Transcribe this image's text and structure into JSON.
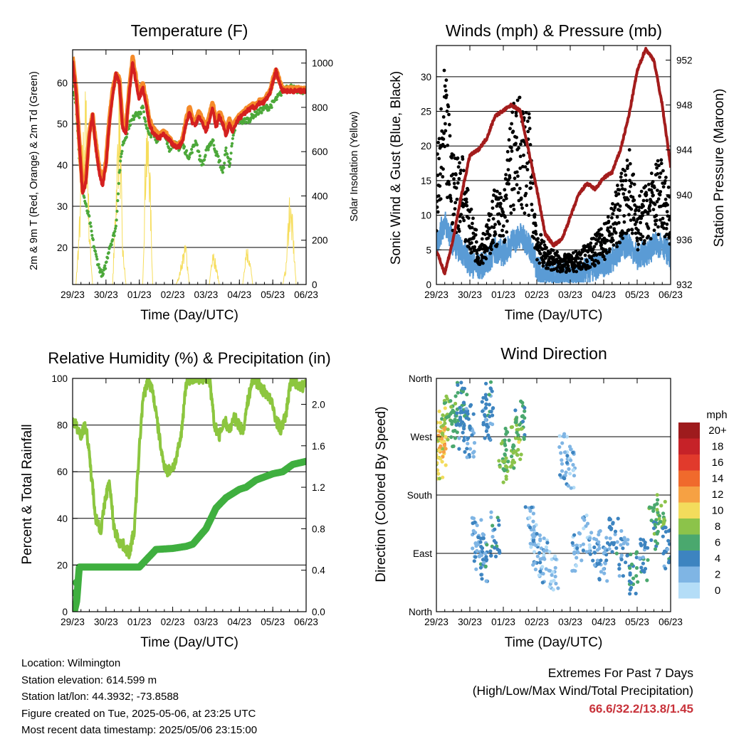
{
  "chart_data": [
    {
      "type": "line",
      "title": "Temperature (F)",
      "xlabel": "Time (Day/UTC)",
      "ylabel": "2m & 9m T (Red, Orange) & 2m Td (Green)",
      "ylabel_right": "Solar Insolation (Yellow)",
      "x_ticks": [
        "29/23",
        "30/23",
        "01/23",
        "02/23",
        "03/23",
        "04/23",
        "05/23",
        "06/23"
      ],
      "ylim": [
        11,
        68
      ],
      "ylim_right": [
        0,
        1060
      ],
      "y_ticks": [
        "20",
        "30",
        "40",
        "50",
        "60"
      ],
      "y_ticks_right": [
        "0",
        "200",
        "400",
        "600",
        "800",
        "1000"
      ],
      "x": [
        0,
        0.1,
        0.2,
        0.3,
        0.4,
        0.5,
        0.6,
        0.7,
        0.8,
        0.9,
        1.0,
        1.1,
        1.2,
        1.3,
        1.4,
        1.5,
        1.6,
        1.7,
        1.8,
        1.9,
        2.0,
        2.1,
        2.2,
        2.3,
        2.4,
        2.5,
        2.6,
        2.7,
        2.8,
        2.9,
        3.0,
        3.1,
        3.2,
        3.3,
        3.4,
        3.5,
        3.6,
        3.7,
        3.8,
        3.9,
        4.0,
        4.1,
        4.2,
        4.3,
        4.4,
        4.5,
        4.6,
        4.7,
        4.8,
        4.9,
        5.0,
        5.1,
        5.2,
        5.3,
        5.4,
        5.5,
        5.6,
        5.7,
        5.8,
        5.9,
        6.0,
        6.1,
        6.2,
        6.3,
        6.4,
        6.5,
        6.6,
        6.7,
        6.8,
        6.9,
        7.0
      ],
      "series": [
        {
          "name": "2m T",
          "color": "#d42020",
          "values": [
            65,
            58,
            45,
            33,
            36,
            47,
            52,
            44,
            38,
            35,
            40,
            50,
            57,
            62,
            60,
            49,
            48,
            58,
            65,
            60,
            56,
            59,
            55,
            50,
            48,
            47,
            46.5,
            47.5,
            47,
            46,
            45,
            44.5,
            44.5,
            46,
            50,
            53,
            50,
            50,
            52,
            50,
            48,
            51,
            54,
            49,
            52,
            50,
            47,
            50,
            48,
            50,
            51.5,
            52,
            53,
            53.5,
            54,
            54,
            55,
            55,
            56,
            57,
            60,
            63,
            60,
            58,
            58,
            58,
            58,
            58,
            58,
            58,
            58
          ]
        },
        {
          "name": "9m T",
          "color": "#f58b2a",
          "values": [
            66,
            59,
            46,
            34,
            37,
            48,
            52,
            45,
            39,
            36,
            41,
            51,
            58,
            62,
            61,
            50,
            49,
            59,
            66,
            61,
            57,
            60,
            56,
            51,
            49,
            48,
            47,
            48,
            47.5,
            46.5,
            45.5,
            45,
            45,
            46.5,
            51,
            54,
            51,
            51,
            53,
            51,
            49,
            52,
            55,
            50,
            53,
            51,
            48,
            51,
            49,
            51,
            52,
            52.5,
            53.5,
            54,
            54.5,
            54.5,
            55.5,
            55.5,
            56.5,
            57.5,
            60.5,
            63,
            60.5,
            58.5,
            58.5,
            58.5,
            58.5,
            58.5,
            58.5,
            58.5,
            58.5
          ]
        },
        {
          "name": "2m Td",
          "color": "#4ca83a",
          "values": [
            60,
            55,
            42,
            34,
            30,
            27,
            22,
            18,
            15,
            13,
            16,
            20,
            22,
            25,
            38,
            45,
            47,
            50,
            51,
            53,
            52,
            54,
            50,
            47,
            48,
            46,
            47,
            48,
            46,
            44,
            45,
            45,
            44,
            45,
            43,
            42,
            44,
            46,
            42,
            40,
            43,
            45,
            46,
            43,
            41,
            38,
            44,
            40,
            46,
            50,
            51,
            50.5,
            51,
            51,
            52,
            52.5,
            53,
            53.5,
            54,
            54,
            55,
            56,
            57,
            58,
            59,
            59,
            59,
            58,
            58,
            58,
            58
          ]
        },
        {
          "name": "Solar Insolation",
          "axis": "right",
          "color": "#f6dd5c",
          "values": [
            0,
            0,
            300,
            700,
            950,
            300,
            0,
            0,
            0,
            0,
            0,
            0,
            0,
            500,
            980,
            200,
            0,
            0,
            0,
            0,
            0,
            0,
            800,
            700,
            0,
            0,
            0,
            0,
            0,
            0,
            0,
            0,
            50,
            150,
            200,
            0,
            0,
            0,
            0,
            0,
            0,
            0,
            200,
            100,
            0,
            0,
            0,
            0,
            0,
            0,
            0,
            0,
            200,
            150,
            0,
            0,
            0,
            0,
            0,
            0,
            0,
            0,
            0,
            0,
            100,
            450,
            300,
            0,
            0,
            0,
            0
          ]
        }
      ]
    },
    {
      "type": "scatter",
      "title": "Winds (mph) & Pressure (mb)",
      "xlabel": "Time (Day/UTC)",
      "ylabel": "Sonic Wind & Gust (Blue, Black)",
      "ylabel_right": "Station Pressure (Maroon)",
      "x_ticks": [
        "29/23",
        "30/23",
        "01/23",
        "02/23",
        "03/23",
        "04/23",
        "05/23",
        "06/23"
      ],
      "ylim": [
        0,
        34.5
      ],
      "ylim_right": [
        932,
        953.3
      ],
      "y_ticks": [
        "0",
        "5",
        "10",
        "15",
        "20",
        "25",
        "30"
      ],
      "y_ticks_right": [
        "932",
        "936",
        "940",
        "944",
        "948",
        "952"
      ],
      "series": [
        {
          "name": "Gust",
          "color": "#000000",
          "x": [
            0,
            0.25,
            0.5,
            0.75,
            1.0,
            1.25,
            1.5,
            1.75,
            2.0,
            2.25,
            2.5,
            2.75,
            3.0,
            3.25,
            3.5,
            3.75,
            4.0,
            4.25,
            4.5,
            4.75,
            5.0,
            5.25,
            5.5,
            5.75,
            6.0,
            6.25,
            6.5,
            6.75,
            7.0
          ],
          "values": [
            12,
            22,
            13,
            14,
            8,
            5,
            6,
            10,
            9,
            18,
            19,
            18,
            6,
            4,
            3.5,
            3,
            3,
            3.5,
            4,
            5,
            6,
            8,
            11,
            14,
            9,
            10,
            12,
            14,
            9
          ]
        },
        {
          "name": "Wind",
          "color": "#5a9bd5",
          "x": [
            0,
            0.25,
            0.5,
            0.75,
            1.0,
            1.25,
            1.5,
            1.75,
            2.0,
            2.25,
            2.5,
            2.75,
            3.0,
            3.25,
            3.5,
            3.75,
            4.0,
            4.25,
            4.5,
            4.75,
            5.0,
            5.25,
            5.5,
            5.75,
            6.0,
            6.25,
            6.5,
            6.75,
            7.0
          ],
          "values": [
            6,
            9,
            6,
            5,
            3,
            2.5,
            3,
            5,
            4.5,
            6,
            7,
            6,
            2.5,
            1.5,
            1.5,
            1.2,
            1.2,
            1.5,
            2,
            2.5,
            3,
            3.5,
            5,
            6,
            4,
            4.5,
            5.5,
            6,
            4
          ]
        },
        {
          "name": "Station Pressure",
          "axis": "right",
          "color": "#a31c1c",
          "x": [
            0,
            0.25,
            0.5,
            0.75,
            1.0,
            1.25,
            1.5,
            1.75,
            2.0,
            2.25,
            2.5,
            2.75,
            3.0,
            3.25,
            3.5,
            3.75,
            4.0,
            4.25,
            4.5,
            4.75,
            5.0,
            5.25,
            5.5,
            5.75,
            6.0,
            6.25,
            6.5,
            6.75,
            7.0
          ],
          "values": [
            935,
            933,
            936,
            940,
            943.5,
            944,
            945,
            947,
            947.5,
            948,
            947.5,
            944,
            940.5,
            936.5,
            935.5,
            936,
            938,
            940,
            941,
            940.5,
            941.5,
            942,
            944,
            947,
            951,
            953,
            952,
            948,
            942.5
          ]
        }
      ]
    },
    {
      "type": "line",
      "title": "Relative Humidity (%) & Precipitation (in)",
      "xlabel": "Time (Day/UTC)",
      "ylabel": "Percent & Total Rainfall",
      "x_ticks": [
        "29/23",
        "30/23",
        "01/23",
        "02/23",
        "03/23",
        "04/23",
        "05/23",
        "06/23"
      ],
      "ylim": [
        0,
        100
      ],
      "ylim_right": [
        0,
        2.25
      ],
      "y_ticks": [
        "0",
        "20",
        "40",
        "60",
        "80",
        "100"
      ],
      "y_ticks_right": [
        "0.0",
        "0.4",
        "0.8",
        "1.2",
        "1.6",
        "2.0"
      ],
      "series": [
        {
          "name": "Relative Humidity",
          "color": "#8cc63f",
          "x": [
            0,
            0.1,
            0.25,
            0.4,
            0.55,
            0.7,
            0.85,
            1.0,
            1.1,
            1.25,
            1.4,
            1.55,
            1.7,
            1.85,
            2.0,
            2.1,
            2.25,
            2.4,
            2.55,
            2.7,
            2.85,
            3.0,
            3.1,
            3.25,
            3.4,
            3.55,
            3.7,
            3.85,
            4.0,
            4.1,
            4.25,
            4.4,
            4.55,
            4.7,
            4.85,
            5.0,
            5.1,
            5.25,
            5.4,
            5.55,
            5.7,
            5.85,
            6.0,
            6.1,
            6.25,
            6.4,
            6.55,
            6.7,
            6.85,
            7.0
          ],
          "values": [
            82,
            80,
            76,
            80,
            60,
            40,
            35,
            50,
            55,
            35,
            30,
            28,
            25,
            35,
            70,
            90,
            99,
            95,
            80,
            65,
            60,
            62,
            65,
            75,
            98,
            100,
            100,
            100,
            100,
            100,
            80,
            75,
            82,
            78,
            83,
            80,
            77,
            90,
            100,
            98,
            95,
            93,
            88,
            82,
            78,
            85,
            100,
            98,
            96,
            98
          ]
        },
        {
          "name": "Total Rainfall",
          "axis": "right",
          "color": "#3faf3f",
          "x": [
            0,
            0.05,
            0.12,
            0.2,
            0.5,
            1.0,
            1.5,
            2.0,
            2.5,
            3.0,
            3.4,
            3.6,
            4.0,
            4.3,
            4.6,
            5.0,
            5.2,
            5.5,
            6.0,
            6.3,
            6.6,
            7.0
          ],
          "values": [
            0.0,
            0.0,
            0.1,
            0.43,
            0.43,
            0.43,
            0.43,
            0.43,
            0.6,
            0.61,
            0.63,
            0.65,
            0.8,
            1.0,
            1.1,
            1.18,
            1.2,
            1.27,
            1.33,
            1.35,
            1.42,
            1.45
          ]
        }
      ]
    },
    {
      "type": "scatter",
      "title": "Wind Direction",
      "xlabel": "Time (Day/UTC)",
      "ylabel": "Direction (Colored By Speed)",
      "x_ticks": [
        "29/23",
        "30/23",
        "01/23",
        "02/23",
        "03/23",
        "04/23",
        "05/23",
        "06/23"
      ],
      "y_ticks": [
        "North",
        "East",
        "South",
        "West",
        "North"
      ],
      "ylim": [
        0,
        360
      ],
      "colorbar_label": "mph",
      "colorbar_ticks": [
        "20+",
        "18",
        "16",
        "14",
        "12",
        "10",
        "8",
        "6",
        "4",
        "2",
        "0"
      ],
      "colorbar_colors": [
        "#9e1b1d",
        "#c62228",
        "#e13a2c",
        "#f06a2c",
        "#f6a143",
        "#f3dc5c",
        "#8cc34a",
        "#4aa86e",
        "#3d84c0",
        "#7fb5e4",
        "#b4ddf7"
      ],
      "points": [
        {
          "x": 0.1,
          "y": 260,
          "speed": 9
        },
        {
          "x": 0.2,
          "y": 280,
          "speed": 12
        },
        {
          "x": 0.15,
          "y": 240,
          "speed": 10
        },
        {
          "x": 0.3,
          "y": 300,
          "speed": 7
        },
        {
          "x": 0.5,
          "y": 290,
          "speed": 6
        },
        {
          "x": 0.7,
          "y": 320,
          "speed": 5
        },
        {
          "x": 0.9,
          "y": 310,
          "speed": 5
        },
        {
          "x": 0.8,
          "y": 280,
          "speed": 4
        },
        {
          "x": 1.0,
          "y": 270,
          "speed": 3
        },
        {
          "x": 1.2,
          "y": 110,
          "speed": 3
        },
        {
          "x": 1.3,
          "y": 90,
          "speed": 3
        },
        {
          "x": 1.4,
          "y": 80,
          "speed": 4
        },
        {
          "x": 1.5,
          "y": 300,
          "speed": 3
        },
        {
          "x": 1.6,
          "y": 320,
          "speed": 4
        },
        {
          "x": 1.75,
          "y": 120,
          "speed": 4
        },
        {
          "x": 2.0,
          "y": 230,
          "speed": 7
        },
        {
          "x": 2.2,
          "y": 250,
          "speed": 7
        },
        {
          "x": 2.4,
          "y": 270,
          "speed": 8
        },
        {
          "x": 2.5,
          "y": 290,
          "speed": 6
        },
        {
          "x": 2.8,
          "y": 130,
          "speed": 2
        },
        {
          "x": 3.0,
          "y": 100,
          "speed": 2
        },
        {
          "x": 3.2,
          "y": 80,
          "speed": 2
        },
        {
          "x": 3.5,
          "y": 60,
          "speed": 1
        },
        {
          "x": 3.8,
          "y": 240,
          "speed": 2
        },
        {
          "x": 4.0,
          "y": 220,
          "speed": 2
        },
        {
          "x": 4.2,
          "y": 90,
          "speed": 2
        },
        {
          "x": 4.5,
          "y": 120,
          "speed": 2
        },
        {
          "x": 4.8,
          "y": 100,
          "speed": 3
        },
        {
          "x": 5.0,
          "y": 80,
          "speed": 3
        },
        {
          "x": 5.3,
          "y": 110,
          "speed": 4
        },
        {
          "x": 5.6,
          "y": 90,
          "speed": 3
        },
        {
          "x": 5.9,
          "y": 60,
          "speed": 5
        },
        {
          "x": 6.2,
          "y": 80,
          "speed": 4
        },
        {
          "x": 6.5,
          "y": 130,
          "speed": 6
        },
        {
          "x": 6.7,
          "y": 150,
          "speed": 7
        },
        {
          "x": 6.9,
          "y": 100,
          "speed": 4
        }
      ]
    }
  ],
  "footer": {
    "location": "Location: Wilmington",
    "elevation": "Station elevation: 614.599 m",
    "latlon": "Station lat/lon: 44.3932; -73.8588",
    "created": "Figure created on Tue, 2025-05-06, at 23:25 UTC",
    "recent": "Most recent data timestamp: 2025/05/06 23:15:00"
  },
  "extremes": {
    "title": "Extremes For Past 7 Days",
    "subtitle": "(High/Low/Max Wind/Total Precipitation)",
    "values": "66.6/32.2/13.8/1.45"
  }
}
